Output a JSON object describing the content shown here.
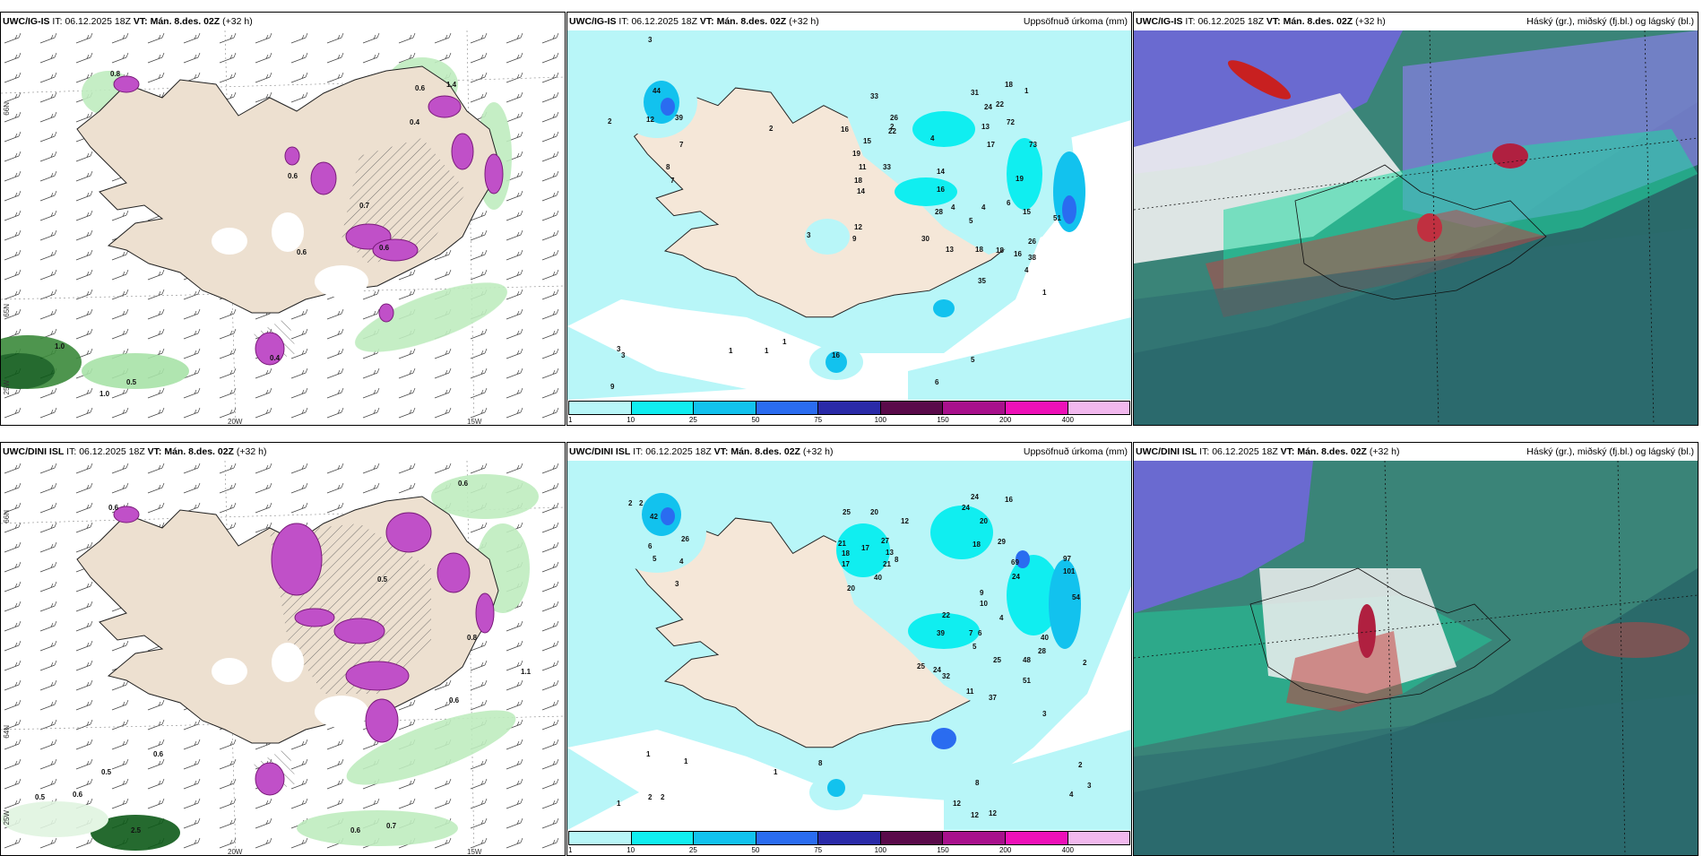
{
  "panels": [
    {
      "model": "UWC/IG-IS",
      "it_label": "IT:",
      "it": "06.12.2025 18Z",
      "vt_label": "VT:",
      "vt": "Mán. 8.des. 02Z",
      "lead": "(+32 h)",
      "right_title": "",
      "type": "precip-type"
    },
    {
      "model": "UWC/IG-IS",
      "it_label": "IT:",
      "it": "06.12.2025 18Z",
      "vt_label": "VT:",
      "vt": "Mán. 8.des. 02Z",
      "lead": "(+32 h)",
      "right_title": "Uppsöfnuð úrkoma (mm)",
      "type": "accum"
    },
    {
      "model": "UWC/IG-IS",
      "it_label": "IT:",
      "it": "06.12.2025 18Z",
      "vt_label": "VT:",
      "vt": "Mán. 8.des. 02Z",
      "lead": "(+32 h)",
      "right_title": "Háský (gr.), miðský (fj.bl.) og lágský (bl.)",
      "type": "clouds"
    },
    {
      "model": "UWC/DINI ISL",
      "it_label": "IT:",
      "it": "06.12.2025 18Z",
      "vt_label": "VT:",
      "vt": "Mán. 8.des. 02Z",
      "lead": "(+32 h)",
      "right_title": "",
      "type": "precip-type"
    },
    {
      "model": "UWC/DINI ISL",
      "it_label": "IT:",
      "it": "06.12.2025 18Z",
      "vt_label": "VT:",
      "vt": "Mán. 8.des. 02Z",
      "lead": "(+32 h)",
      "right_title": "Uppsöfnuð úrkoma (mm)",
      "type": "accum"
    },
    {
      "model": "UWC/DINI ISL",
      "it_label": "IT:",
      "it": "06.12.2025 18Z",
      "vt_label": "VT:",
      "vt": "Mán. 8.des. 02Z",
      "lead": "(+32 h)",
      "right_title": "Háský (gr.), miðský (fj.bl.) og lágský (bl.)",
      "type": "clouds"
    }
  ],
  "map_labels": {
    "lon_20": "20W",
    "lon_15": "15W",
    "lon_25": "25W",
    "lat_66": "66N",
    "lat_65": "65N",
    "lat_64": "64N"
  },
  "colorbar": {
    "ticks": [
      "1",
      "10",
      "25",
      "50",
      "75",
      "100",
      "150",
      "200",
      "400"
    ],
    "colors": [
      "#b8f6f8",
      "#10eef0",
      "#12c2ee",
      "#2a6cf0",
      "#2a2aa8",
      "#5a0a4a",
      "#a8108c",
      "#ee10b8",
      "#f2b8ee"
    ]
  },
  "accum_values_top": [
    "44",
    "39",
    "12",
    "2",
    "3",
    "7",
    "1",
    "2",
    "1",
    "16",
    "33",
    "26",
    "22",
    "15",
    "19",
    "33",
    "11",
    "18",
    "14",
    "31",
    "24",
    "22",
    "18",
    "13",
    "72",
    "17",
    "73",
    "19",
    "14",
    "16",
    "28",
    "4",
    "5",
    "4",
    "6",
    "15",
    "51",
    "30",
    "13",
    "18",
    "18",
    "16",
    "26",
    "38",
    "35",
    "4",
    "1",
    "12",
    "9",
    "3",
    "3",
    "1",
    "1",
    "9",
    "16",
    "5",
    "6",
    "2",
    "8",
    "7",
    "4",
    "3"
  ],
  "accum_values_bottom": [
    "2",
    "42",
    "26",
    "6",
    "5",
    "4",
    "2",
    "3",
    "25",
    "20",
    "21",
    "17",
    "18",
    "27",
    "13",
    "21",
    "40",
    "20",
    "17",
    "12",
    "24",
    "24",
    "20",
    "18",
    "16",
    "29",
    "69",
    "24",
    "97",
    "101",
    "8",
    "54",
    "9",
    "10",
    "22",
    "39",
    "7",
    "6",
    "5",
    "25",
    "24",
    "32",
    "25",
    "11",
    "48",
    "37",
    "51",
    "40",
    "28",
    "4",
    "3",
    "1",
    "1",
    "1",
    "8",
    "2",
    "2",
    "1",
    "12",
    "8",
    "12",
    "12",
    "2",
    "3",
    "4",
    "2"
  ],
  "precip_values_top": [
    "0.8",
    "1.4",
    "0.6",
    "0.4",
    "0.6",
    "0.6",
    "0.7",
    "1.0",
    "0.5",
    "0.4",
    "0.6",
    "1.0"
  ],
  "precip_values_bottom": [
    "0.6",
    "0.6",
    "0.5",
    "0.6",
    "0.5",
    "2.5",
    "0.6",
    "0.7",
    "1.1",
    "0.6",
    "0.6",
    "0.5",
    "0.8"
  ]
}
